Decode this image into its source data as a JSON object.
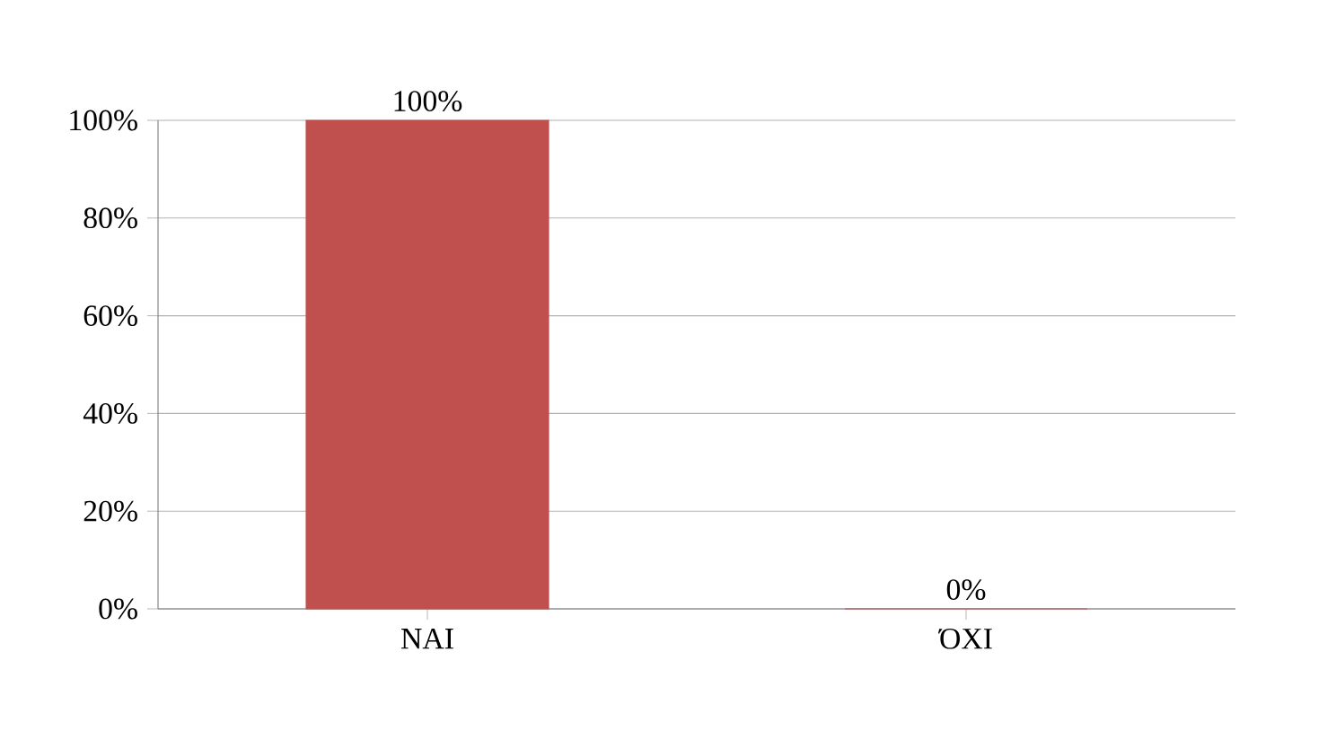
{
  "chart_data": {
    "type": "bar",
    "categories": [
      "ΝΑΙ",
      "ΌΧΙ"
    ],
    "values": [
      100,
      0
    ],
    "value_labels": [
      "100%",
      "0%"
    ],
    "color": "#c0504d",
    "ylim": [
      0,
      100
    ],
    "yticks": [
      {
        "value": 0,
        "label": "0%"
      },
      {
        "value": 20,
        "label": "20%"
      },
      {
        "value": 40,
        "label": "40%"
      },
      {
        "value": 60,
        "label": "60%"
      },
      {
        "value": 80,
        "label": "80%"
      },
      {
        "value": 100,
        "label": "100%"
      }
    ],
    "grid": "y"
  }
}
